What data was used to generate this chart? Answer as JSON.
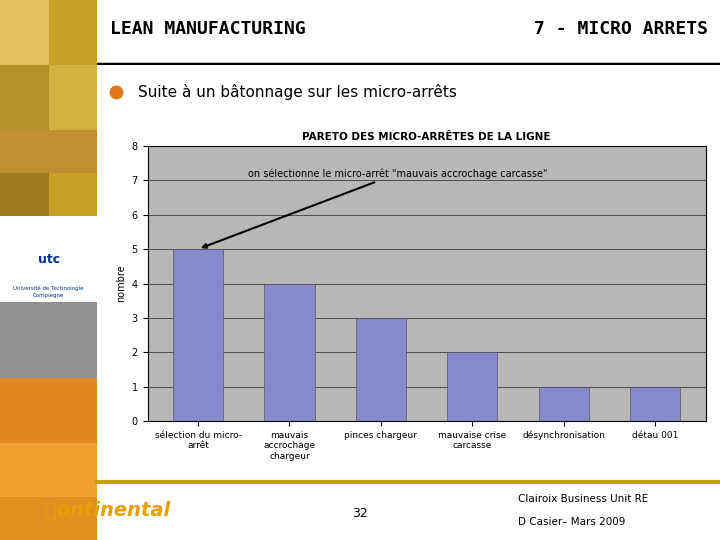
{
  "title": "LEAN MANUFACTURING",
  "subtitle": "7 - MICRO ARRETS",
  "bullet_text": "Suite à un bâtonnage sur les micro-arrêts",
  "chart_title": "PARETO DES MICRO-ARRÊTES DE LA LIGNE",
  "ylabel": "nombre",
  "categories": [
    "sélection du micro-\narrêt",
    "mauvais\naccrochage\nchargeur",
    "pinces chargeur",
    "mauvaise crise\ncarcasse",
    "désynchronisation",
    "détau 001"
  ],
  "values": [
    5,
    4,
    3,
    2,
    1,
    1
  ],
  "bar_color": "#8888cc",
  "chart_bg": "#b8b8b8",
  "ylim": [
    0,
    8
  ],
  "yticks": [
    0,
    1,
    2,
    3,
    4,
    5,
    6,
    7,
    8
  ],
  "annotation_text": "on sélectionne le micro-arrêt \"mauvais accrochage carcasse\"",
  "page_number": "32",
  "footer_right1": "Clairoix Business Unit RE",
  "footer_right2": "D Casier– Mars 2009",
  "orange_bullet_color": "#e07820",
  "sidebar_top_colors": [
    "#c8a030",
    "#d0a838",
    "#b89028"
  ],
  "sidebar_img_colors": [
    "#c8a030",
    "#d8b040",
    "#e0c060",
    "#b89028",
    "#a07820",
    "#887020"
  ],
  "sidebar_bottom_colors": [
    "#a0a0a0",
    "#888888",
    "#c0a030",
    "#e08820",
    "#f0a030"
  ],
  "footer_gold_line": "#c8a000",
  "continental_color": "#e8a000"
}
